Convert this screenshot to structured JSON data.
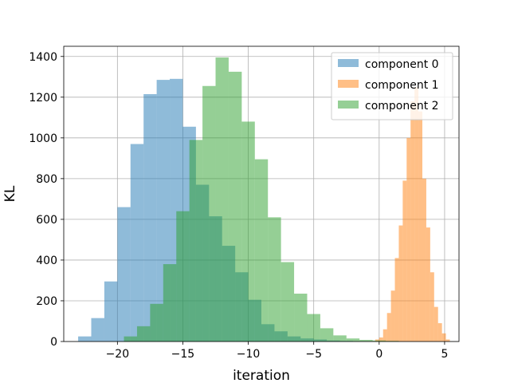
{
  "chart_data": {
    "type": "histogram",
    "xlabel": "iteration",
    "ylabel": "KL",
    "xlim": [
      -24.1,
      6.1
    ],
    "ylim": [
      0,
      1450
    ],
    "xticks": [
      -20,
      -15,
      -10,
      -5,
      0,
      5
    ],
    "xtick_labels": [
      "−20",
      "−15",
      "−10",
      "−5",
      "0",
      "5"
    ],
    "yticks": [
      0,
      200,
      400,
      600,
      800,
      1000,
      1200,
      1400
    ],
    "ytick_labels": [
      "0",
      "200",
      "400",
      "600",
      "800",
      "1000",
      "1200",
      "1400"
    ],
    "grid": true,
    "legend_position": "top-right",
    "series": [
      {
        "name": "component 0",
        "color": "#1f77b4",
        "opacity": 0.5,
        "bin_start": -23,
        "bin_width": 1.0,
        "counts": [
          25,
          115,
          295,
          660,
          970,
          1215,
          1285,
          1290,
          1055,
          770,
          615,
          470,
          340,
          205,
          85,
          50,
          25,
          15,
          10,
          5,
          3,
          2,
          1
        ]
      },
      {
        "name": "component 1",
        "color": "#ff7f0e",
        "opacity": 0.5,
        "bin_start": -0.6,
        "bin_width": 0.3,
        "counts": [
          2,
          10,
          20,
          60,
          140,
          250,
          410,
          570,
          790,
          1000,
          1180,
          1250,
          1130,
          800,
          560,
          340,
          170,
          90,
          40,
          10
        ]
      },
      {
        "name": "component 2",
        "color": "#2ca02c",
        "opacity": 0.5,
        "bin_start": -19.5,
        "bin_width": 1.0,
        "counts": [
          25,
          75,
          185,
          380,
          640,
          990,
          1255,
          1395,
          1325,
          1080,
          895,
          610,
          390,
          235,
          135,
          65,
          30,
          15,
          8,
          5,
          3
        ]
      }
    ]
  }
}
